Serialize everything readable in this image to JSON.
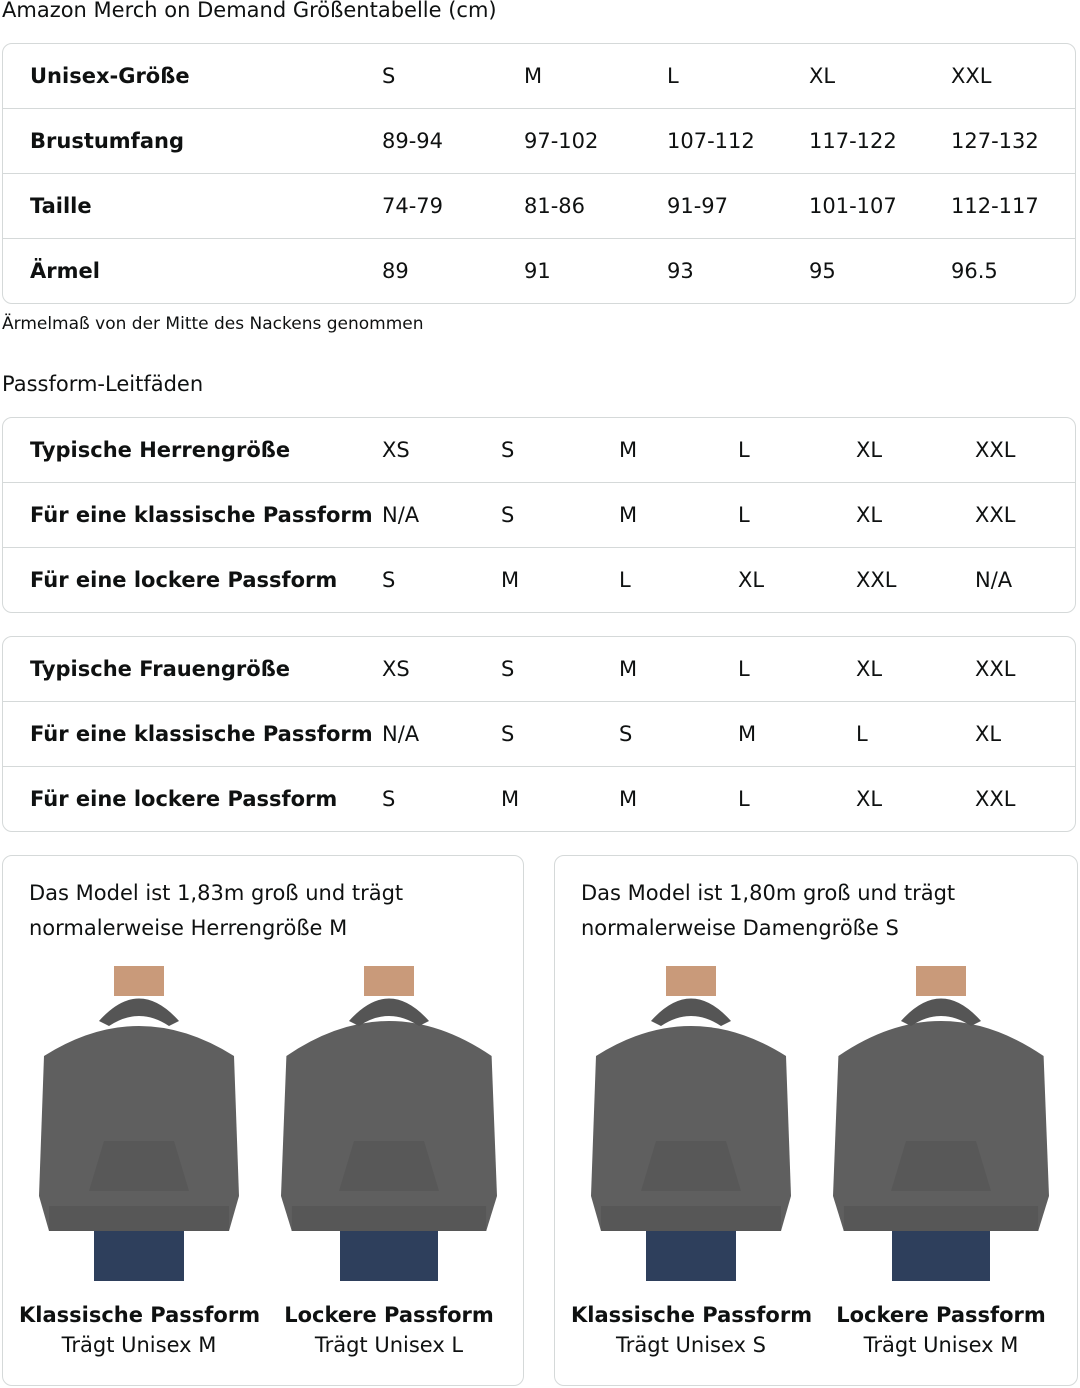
{
  "title": "Amazon Merch on Demand Größentabelle (cm)",
  "size_table": {
    "rows": [
      [
        "Unisex-Größe",
        "S",
        "M",
        "L",
        "XL",
        "XXL"
      ],
      [
        "Brustumfang",
        "89-94",
        "97-102",
        "107-112",
        "117-122",
        "127-132"
      ],
      [
        "Taille",
        "74-79",
        "81-86",
        "91-97",
        "101-107",
        "112-117"
      ],
      [
        "Ärmel",
        "89",
        "91",
        "93",
        "95",
        "96.5"
      ]
    ]
  },
  "note": "Ärmelmaß von der Mitte des Nackens genommen",
  "fit_heading": "Passform-Leitfäden",
  "men_table": {
    "rows": [
      [
        "Typische Herrengröße",
        "XS",
        "S",
        "M",
        "L",
        "XL",
        "XXL"
      ],
      [
        "Für eine klassische Passform",
        "N/A",
        "S",
        "M",
        "L",
        "XL",
        "XXL"
      ],
      [
        "Für eine lockere Passform",
        "S",
        "M",
        "L",
        "XL",
        "XXL",
        "N/A"
      ]
    ]
  },
  "women_table": {
    "rows": [
      [
        "Typische Frauengröße",
        "XS",
        "S",
        "M",
        "L",
        "XL",
        "XXL"
      ],
      [
        "Für eine klassische Passform",
        "N/A",
        "S",
        "S",
        "M",
        "L",
        "XL"
      ],
      [
        "Für eine lockere Passform",
        "S",
        "M",
        "M",
        "L",
        "XL",
        "XXL"
      ]
    ]
  },
  "cards": [
    {
      "desc": "Das Model ist 1,83m groß und trägt normalerweise Herrengröße M",
      "figures": [
        {
          "title": "Klassische Passform",
          "sub": "Trägt Unisex M"
        },
        {
          "title": "Lockere Passform",
          "sub": "Trägt Unisex L"
        }
      ]
    },
    {
      "desc": "Das Model ist 1,80m groß und trägt normalerweise Damengröße S",
      "figures": [
        {
          "title": "Klassische Passform",
          "sub": "Trägt Unisex S"
        },
        {
          "title": "Lockere Passform",
          "sub": "Trägt Unisex M"
        }
      ]
    }
  ],
  "colors": {
    "hoodie": "#5f5f5f",
    "jeans": "#2e3f5c",
    "skin": "#c99a7a",
    "border": "#d5d9d9"
  }
}
